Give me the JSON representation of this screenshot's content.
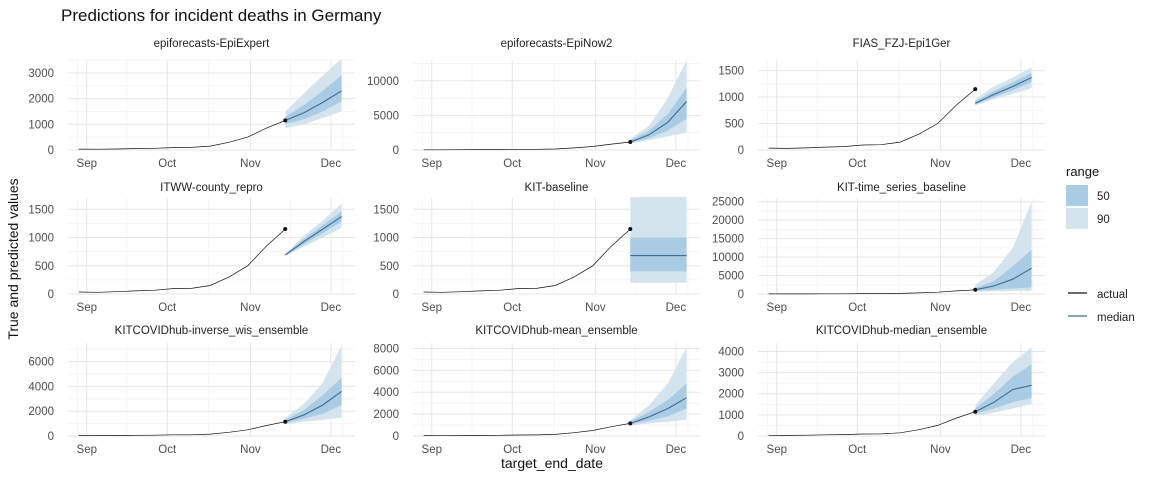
{
  "title": "Predictions for incident deaths in Germany",
  "xlabel": "target_end_date",
  "ylabel": "True and predicted values",
  "legend": {
    "range_title": "range",
    "range_items": [
      {
        "label": "50",
        "color": "#a9cbe3"
      },
      {
        "label": "90",
        "color": "#d4e4ee"
      }
    ],
    "line_items": [
      {
        "label": "actual",
        "color": "#111111"
      },
      {
        "label": "median",
        "color": "#3e6d95"
      }
    ]
  },
  "colors": {
    "band90": "#d4e4ee",
    "band50": "#a9cbe3",
    "median": "#3e6d95",
    "actual": "#111111",
    "grid_major": "#e6e6e6",
    "grid_minor": "#f3f3f3"
  },
  "chart_data": {
    "type": "line",
    "x_tick_labels": [
      "Sep",
      "Oct",
      "Nov",
      "Dec"
    ],
    "x_ticks": [
      "2020-09-01",
      "2020-10-01",
      "2020-11-01",
      "2020-12-01"
    ],
    "x_range": [
      "2020-08-25",
      "2020-12-10"
    ],
    "actual": {
      "dates": [
        "2020-08-29",
        "2020-09-05",
        "2020-09-12",
        "2020-09-19",
        "2020-09-26",
        "2020-10-03",
        "2020-10-10",
        "2020-10-17",
        "2020-10-24",
        "2020-10-31",
        "2020-11-07",
        "2020-11-14"
      ],
      "values": [
        35,
        30,
        40,
        55,
        65,
        95,
        100,
        150,
        300,
        500,
        850,
        1150
      ]
    },
    "forecast_dates": [
      "2020-11-14",
      "2020-11-21",
      "2020-11-28",
      "2020-12-05"
    ],
    "panels": [
      {
        "name": "epiforecasts-EpiExpert",
        "ylim": [
          0,
          3500
        ],
        "yticks": [
          0,
          1000,
          2000,
          3000
        ],
        "median": [
          1150,
          1450,
          1850,
          2300
        ],
        "q50": [
          [
            1000,
            1300
          ],
          [
            1200,
            1750
          ],
          [
            1500,
            2300
          ],
          [
            1900,
            2900
          ]
        ],
        "q90": [
          [
            850,
            1500
          ],
          [
            1000,
            2200
          ],
          [
            1250,
            2900
          ],
          [
            1500,
            3550
          ]
        ]
      },
      {
        "name": "epiforecasts-EpiNow2",
        "ylim": [
          0,
          13000
        ],
        "yticks": [
          0,
          5000,
          10000
        ],
        "median": [
          1150,
          2200,
          4000,
          7000
        ],
        "q50": [
          [
            1050,
            1400
          ],
          [
            1700,
            2800
          ],
          [
            2800,
            5200
          ],
          [
            4500,
            9000
          ]
        ],
        "q90": [
          [
            950,
            1600
          ],
          [
            1400,
            3500
          ],
          [
            2000,
            7500
          ],
          [
            2500,
            13000
          ]
        ]
      },
      {
        "name": "FIAS_FZJ-Epi1Ger",
        "ylim": [
          0,
          1700
        ],
        "yticks": [
          0,
          500,
          1000,
          1500
        ],
        "median": [
          880,
          1050,
          1200,
          1370
        ],
        "q50": [
          [
            860,
            920
          ],
          [
            1000,
            1110
          ],
          [
            1130,
            1280
          ],
          [
            1280,
            1460
          ]
        ],
        "q90": [
          [
            840,
            960
          ],
          [
            960,
            1200
          ],
          [
            1060,
            1370
          ],
          [
            1170,
            1560
          ]
        ],
        "show_last_point": true
      },
      {
        "name": "ITWW-county_repro",
        "ylim": [
          0,
          1700
        ],
        "yticks": [
          0,
          500,
          1000,
          1500
        ],
        "median": [
          690,
          930,
          1150,
          1370
        ],
        "q50": [
          [
            680,
            700
          ],
          [
            880,
            980
          ],
          [
            1080,
            1220
          ],
          [
            1280,
            1460
          ]
        ],
        "q90": [
          [
            670,
            710
          ],
          [
            840,
            1040
          ],
          [
            1000,
            1300
          ],
          [
            1170,
            1600
          ]
        ],
        "show_last_point": true
      },
      {
        "name": "KIT-baseline",
        "ylim": [
          0,
          1700
        ],
        "yticks": [
          0,
          500,
          1000,
          1500
        ],
        "median": [
          680,
          680,
          680,
          680
        ],
        "q50": [
          [
            400,
            1000
          ],
          [
            400,
            1000
          ],
          [
            400,
            1000
          ],
          [
            400,
            1000
          ]
        ],
        "q90": [
          [
            200,
            1720
          ],
          [
            200,
            1720
          ],
          [
            200,
            1720
          ],
          [
            200,
            1720
          ]
        ],
        "show_last_point": true
      },
      {
        "name": "KIT-time_series_baseline",
        "ylim": [
          0,
          26000
        ],
        "yticks": [
          0,
          5000,
          10000,
          15000,
          20000,
          25000
        ],
        "median": [
          1150,
          2200,
          4000,
          7000
        ],
        "q50": [
          [
            900,
            1600
          ],
          [
            1200,
            3500
          ],
          [
            1500,
            7500
          ],
          [
            1800,
            12000
          ]
        ],
        "q90": [
          [
            600,
            2500
          ],
          [
            700,
            6000
          ],
          [
            800,
            12500
          ],
          [
            900,
            25000
          ]
        ]
      },
      {
        "name": "KITCOVIDhub-inverse_wis_ensemble",
        "title_text": "KITCOVIDhub-inverse_wis_ensemble",
        "ylim": [
          0,
          7500
        ],
        "yticks": [
          0,
          2000,
          4000,
          6000
        ],
        "median": [
          1150,
          1700,
          2500,
          3600
        ],
        "q50": [
          [
            1050,
            1300
          ],
          [
            1400,
            2100
          ],
          [
            1800,
            3300
          ],
          [
            2500,
            4700
          ]
        ],
        "q90": [
          [
            950,
            1450
          ],
          [
            1150,
            2600
          ],
          [
            1300,
            4300
          ],
          [
            1500,
            7300
          ]
        ]
      },
      {
        "name": "KITCOVIDhub-mean_ensemble",
        "ylim": [
          0,
          8500
        ],
        "yticks": [
          0,
          2000,
          4000,
          6000,
          8000
        ],
        "median": [
          1150,
          1750,
          2500,
          3500
        ],
        "q50": [
          [
            1050,
            1300
          ],
          [
            1400,
            2200
          ],
          [
            1800,
            3300
          ],
          [
            2500,
            4800
          ]
        ],
        "q90": [
          [
            950,
            1450
          ],
          [
            1150,
            2800
          ],
          [
            1300,
            4800
          ],
          [
            1500,
            8100
          ]
        ]
      },
      {
        "name": "KITCOVIDhub-median_ensemble",
        "ylim": [
          0,
          4400
        ],
        "yticks": [
          0,
          1000,
          2000,
          3000,
          4000
        ],
        "median": [
          1150,
          1600,
          2200,
          2400
        ],
        "q50": [
          [
            1050,
            1300
          ],
          [
            1300,
            2000
          ],
          [
            1600,
            2800
          ],
          [
            1800,
            3400
          ]
        ],
        "q90": [
          [
            950,
            1450
          ],
          [
            1100,
            2500
          ],
          [
            1300,
            3500
          ],
          [
            1500,
            4200
          ]
        ]
      }
    ]
  }
}
